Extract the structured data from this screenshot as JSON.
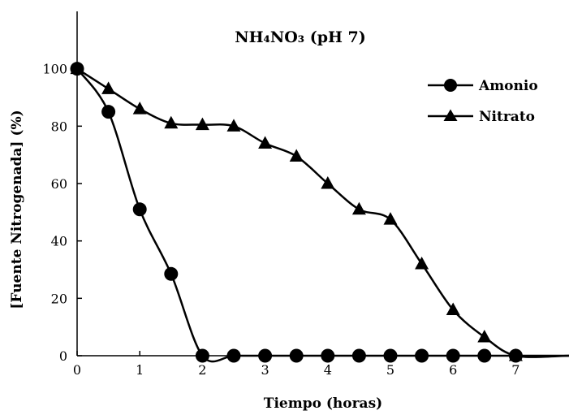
{
  "chart_data": {
    "type": "line",
    "title": "NH₄NO₃ (pH 7)",
    "xlabel": "Tiempo (horas)",
    "ylabel": "[Fuente Nitrogenada] (%)",
    "xlim": [
      0,
      8
    ],
    "ylim": [
      0,
      120
    ],
    "xticks": [
      0,
      1,
      2,
      3,
      4,
      5,
      6,
      7
    ],
    "yticks": [
      0,
      20,
      40,
      60,
      80,
      100
    ],
    "grid": false,
    "legend_position": "top-right",
    "series": [
      {
        "name": "Amonio",
        "marker": "circle",
        "color": "#000000",
        "points": [
          [
            0,
            100
          ],
          [
            0.5,
            85
          ],
          [
            1,
            51
          ],
          [
            1.5,
            28.5
          ],
          [
            2,
            0
          ],
          [
            2.5,
            0
          ],
          [
            3,
            0
          ],
          [
            3.5,
            0
          ],
          [
            4,
            0
          ],
          [
            4.5,
            0
          ],
          [
            5,
            0
          ],
          [
            5.5,
            0
          ],
          [
            6,
            0
          ],
          [
            6.5,
            0
          ],
          [
            7,
            0
          ]
        ]
      },
      {
        "name": "Nitrato",
        "marker": "triangle",
        "color": "#000000",
        "points": [
          [
            0,
            100
          ],
          [
            0.5,
            93
          ],
          [
            1,
            86
          ],
          [
            1.5,
            81
          ],
          [
            2,
            80.5
          ],
          [
            2.5,
            80
          ],
          [
            3,
            74
          ],
          [
            3.5,
            69.5
          ],
          [
            4,
            60
          ],
          [
            4.5,
            51
          ],
          [
            5,
            47.5
          ],
          [
            5.5,
            32
          ],
          [
            6,
            16
          ],
          [
            6.5,
            6.5
          ],
          [
            7,
            0
          ]
        ]
      }
    ]
  }
}
